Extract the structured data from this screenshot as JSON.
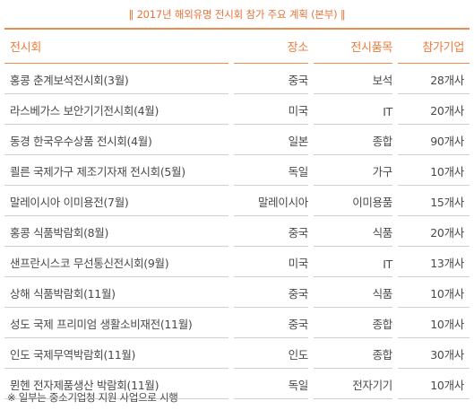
{
  "caption": "‖ 2017년 해외유명 전시회 참가 주요 계획 (본부) ‖",
  "headers": {
    "exhibition": "전시회",
    "location": "장소",
    "item": "전시품목",
    "count": "참가기업"
  },
  "rows": [
    {
      "exhibition": "홍콩 춘계보석전시회(3월)",
      "location": "중국",
      "item": "보석",
      "count": "28개사"
    },
    {
      "exhibition": "라스베가스 보안기기전시회(4월)",
      "location": "미국",
      "item": "IT",
      "count": "20개사"
    },
    {
      "exhibition": "동경 한국우수상품 전시회(4월)",
      "location": "일본",
      "item": "종합",
      "count": "90개사"
    },
    {
      "exhibition": "쾰른 국제가구 제조기자재 전시회(5월)",
      "location": "독일",
      "item": "가구",
      "count": "10개사"
    },
    {
      "exhibition": "말레이시아 이미용전(7월)",
      "location": "말레이시아",
      "item": "이미용품",
      "count": "15개사"
    },
    {
      "exhibition": "홍콩 식품박람회(8월)",
      "location": "중국",
      "item": "식품",
      "count": "20개사"
    },
    {
      "exhibition": "샌프란시스코 무선통신전시회(9월)",
      "location": "미국",
      "item": "IT",
      "count": "13개사"
    },
    {
      "exhibition": "상해 식품박람회(11월)",
      "location": "중국",
      "item": "식품",
      "count": "10개사"
    },
    {
      "exhibition": "성도 국제 프리미엄 생활소비재전(11월)",
      "location": "중국",
      "item": "종합",
      "count": "10개사"
    },
    {
      "exhibition": "인도 국제무역박람회(11월)",
      "location": "인도",
      "item": "종합",
      "count": "30개사"
    },
    {
      "exhibition": "뮌헨 전자제품생산 박람회(11월)",
      "location": "독일",
      "item": "전자기기",
      "count": "10개사"
    }
  ],
  "note": "※ 일부는 중소기업청 지원 사업으로 시행"
}
